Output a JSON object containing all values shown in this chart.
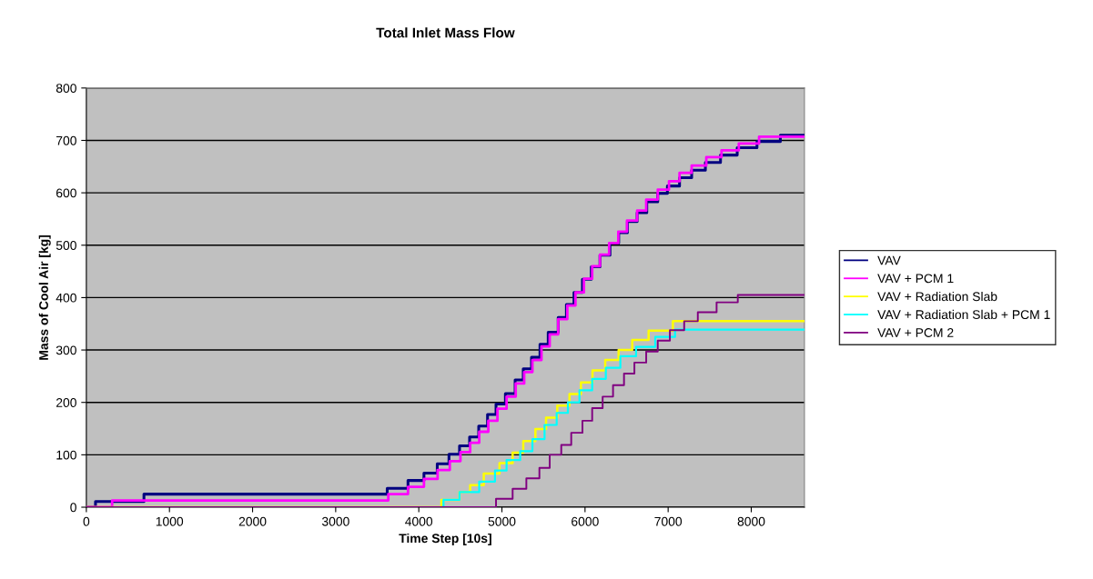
{
  "chart_data": {
    "type": "step",
    "title": "Total Inlet Mass Flow",
    "xlabel": "Time Step [10s]",
    "ylabel": "Mass of Cool Air [kg]",
    "xlim": [
      0,
      8640
    ],
    "xticks": [
      0,
      1000,
      2000,
      3000,
      4000,
      5000,
      6000,
      7000,
      8000
    ],
    "ylim": [
      0,
      800
    ],
    "yticks": [
      0,
      100,
      200,
      300,
      400,
      500,
      600,
      700,
      800
    ],
    "grid": "y",
    "legend": "right",
    "marker": "none",
    "line_style": "solid",
    "series": [
      {
        "name": "VAV",
        "color": "#000080",
        "x": [
          0,
          110,
          693,
          3620,
          3870,
          4062,
          4222,
          4363,
          4490,
          4611,
          4721,
          4827,
          4929,
          5042,
          5159,
          5257,
          5356,
          5458,
          5557,
          5677,
          5776,
          5867,
          5969,
          6075,
          6180,
          6300,
          6405,
          6510,
          6627,
          6743,
          6875,
          6991,
          7137,
          7283,
          7448,
          7630,
          7831,
          8069,
          8350,
          8640
        ],
        "values": [
          0,
          11,
          25,
          36,
          51,
          65,
          83,
          101,
          117,
          134,
          155,
          177,
          197,
          217,
          243,
          264,
          286,
          311,
          334,
          362,
          387,
          410,
          435,
          459,
          481,
          504,
          524,
          545,
          562,
          583,
          599,
          613,
          629,
          643,
          658,
          672,
          686,
          698,
          710,
          710
        ]
      },
      {
        "name": "VAV + PCM 1",
        "color": "#ff00ff",
        "x": [
          0,
          310,
          3633,
          3870,
          4062,
          4226,
          4373,
          4501,
          4618,
          4727,
          4836,
          4946,
          5056,
          5166,
          5268,
          5367,
          5476,
          5575,
          5677,
          5787,
          5885,
          5987,
          6086,
          6180,
          6290,
          6400,
          6505,
          6627,
          6736,
          6875,
          7010,
          7137,
          7283,
          7459,
          7642,
          7850,
          8094,
          8640
        ],
        "values": [
          0,
          13,
          25,
          39,
          54,
          71,
          88,
          105,
          123,
          144,
          165,
          188,
          211,
          236,
          258,
          281,
          307,
          330,
          359,
          385,
          410,
          436,
          460,
          482,
          504,
          526,
          547,
          566,
          587,
          606,
          622,
          638,
          652,
          668,
          681,
          694,
          707,
          707
        ]
      },
      {
        "name": "VAV + Radiation Slab",
        "color": "#ffff00",
        "x": [
          0,
          4272,
          4490,
          4618,
          4782,
          4971,
          5129,
          5257,
          5403,
          5531,
          5666,
          5813,
          5951,
          6090,
          6243,
          6404,
          6568,
          6765,
          7057,
          8640
        ],
        "values": [
          0,
          14,
          29,
          42,
          64,
          84,
          104,
          126,
          149,
          171,
          194,
          216,
          238,
          261,
          281,
          300,
          319,
          337,
          355,
          355
        ]
      },
      {
        "name": "VAV + Radiation Slab + PCM 1",
        "color": "#00ffff",
        "x": [
          0,
          4297,
          4490,
          4727,
          4917,
          5056,
          5220,
          5367,
          5513,
          5659,
          5794,
          5933,
          6086,
          6250,
          6425,
          6614,
          6845,
          7083,
          8640
        ],
        "values": [
          0,
          14,
          29,
          49,
          70,
          90,
          107,
          130,
          157,
          180,
          200,
          223,
          245,
          266,
          288,
          306,
          325,
          339,
          339
        ]
      },
      {
        "name": "VAV + PCM 2",
        "color": "#800080",
        "x": [
          0,
          4929,
          5129,
          5294,
          5451,
          5575,
          5714,
          5834,
          5969,
          6086,
          6212,
          6337,
          6469,
          6594,
          6736,
          6875,
          7021,
          7193,
          7357,
          7583,
          7838,
          8640
        ],
        "values": [
          0,
          16,
          35,
          55,
          75,
          100,
          119,
          142,
          165,
          189,
          211,
          233,
          255,
          276,
          297,
          318,
          338,
          355,
          372,
          391,
          405,
          405
        ]
      }
    ]
  }
}
